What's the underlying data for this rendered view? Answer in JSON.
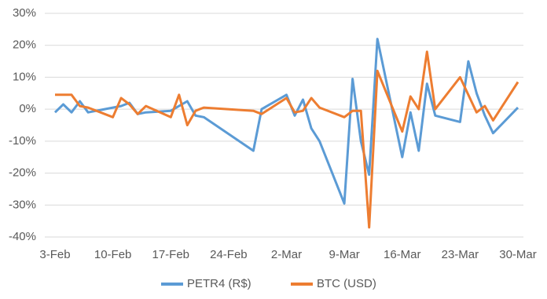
{
  "chart_data": {
    "type": "line",
    "legend": "bottom",
    "grid": true,
    "ylim": [
      -40,
      30
    ],
    "yticks": [
      {
        "value": -40,
        "label": "-40%"
      },
      {
        "value": -30,
        "label": "-30%"
      },
      {
        "value": -20,
        "label": "-20%"
      },
      {
        "value": -10,
        "label": "-10%"
      },
      {
        "value": 0,
        "label": "0%"
      },
      {
        "value": 10,
        "label": "10%"
      },
      {
        "value": 20,
        "label": "20%"
      },
      {
        "value": 30,
        "label": "30%"
      }
    ],
    "xlim": [
      "3-Feb",
      "30-Mar"
    ],
    "xticks": [
      "3-Feb",
      "10-Feb",
      "17-Feb",
      "24-Feb",
      "2-Mar",
      "9-Mar",
      "16-Mar",
      "23-Mar",
      "30-Mar"
    ],
    "series": [
      {
        "name": "PETR4 (R$)",
        "color": "#5b9bd5",
        "x": [
          "3-Feb",
          "4-Feb",
          "5-Feb",
          "6-Feb",
          "7-Feb",
          "10-Feb",
          "11-Feb",
          "12-Feb",
          "13-Feb",
          "14-Feb",
          "17-Feb",
          "18-Feb",
          "19-Feb",
          "20-Feb",
          "21-Feb",
          "27-Feb",
          "28-Feb",
          "2-Mar",
          "3-Mar",
          "4-Mar",
          "5-Mar",
          "6-Mar",
          "9-Mar",
          "10-Mar",
          "11-Mar",
          "12-Mar",
          "13-Mar",
          "16-Mar",
          "17-Mar",
          "18-Mar",
          "19-Mar",
          "20-Mar",
          "23-Mar",
          "24-Mar",
          "25-Mar",
          "26-Mar",
          "27-Mar",
          "30-Mar"
        ],
        "values": [
          -1,
          1.5,
          -1,
          2.5,
          -1,
          0.5,
          1,
          2,
          -1.5,
          -1,
          -0.5,
          1,
          2.5,
          -2,
          -2.5,
          -13,
          0,
          4.5,
          -2,
          3,
          -6,
          -10,
          -29.5,
          9.5,
          -10,
          -20.5,
          22,
          -15,
          -1,
          -13,
          8,
          -2,
          -4,
          15,
          5,
          -2,
          -7.5,
          0.5
        ]
      },
      {
        "name": "BTC (USD)",
        "color": "#ed7d31",
        "x": [
          "3-Feb",
          "4-Feb",
          "5-Feb",
          "6-Feb",
          "7-Feb",
          "10-Feb",
          "11-Feb",
          "12-Feb",
          "13-Feb",
          "14-Feb",
          "17-Feb",
          "18-Feb",
          "19-Feb",
          "20-Feb",
          "21-Feb",
          "27-Feb",
          "28-Feb",
          "2-Mar",
          "3-Mar",
          "4-Mar",
          "5-Mar",
          "6-Mar",
          "9-Mar",
          "10-Mar",
          "11-Mar",
          "12-Mar",
          "13-Mar",
          "16-Mar",
          "17-Mar",
          "18-Mar",
          "19-Mar",
          "20-Mar",
          "23-Mar",
          "25-Mar",
          "26-Mar",
          "27-Mar",
          "30-Mar"
        ],
        "values": [
          4.5,
          4.5,
          4.5,
          1,
          0.5,
          -2.5,
          3.5,
          1.5,
          -1.5,
          1,
          -2.5,
          4.5,
          -5,
          -0.5,
          0.5,
          -0.5,
          -1.5,
          3.5,
          -1,
          -0.5,
          3.5,
          0.5,
          -2.5,
          -0.5,
          -0.5,
          -37,
          12,
          -7,
          4,
          0,
          18,
          0,
          10,
          -1,
          1,
          -3.5,
          8.5
        ]
      }
    ]
  }
}
